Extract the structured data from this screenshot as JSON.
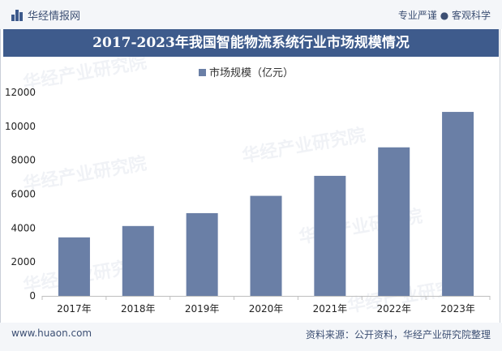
{
  "header": {
    "brand": "华经情报网",
    "slogan": "专业严谨 ● 客观科学"
  },
  "title": "2017-2023年我国智能物流系统行业市场规模情况",
  "footer": {
    "url": "www.huaon.com",
    "source": "资料来源：公开资料，华经产业研究院整理"
  },
  "watermark": "华经产业研究院",
  "colors": {
    "bar": "#6a7fa6",
    "title_bg": "#3e5b8c"
  },
  "chart_data": {
    "type": "bar",
    "categories": [
      "2017年",
      "2018年",
      "2019年",
      "2020年",
      "2021年",
      "2022年",
      "2023年"
    ],
    "series": [
      {
        "name": "市场规模（亿元）",
        "values": [
          3450,
          4120,
          4880,
          5900,
          7080,
          8760,
          10850
        ]
      }
    ],
    "ylim": [
      0,
      12000
    ],
    "yticks": [
      0,
      2000,
      4000,
      6000,
      8000,
      10000,
      12000
    ],
    "legend_position": "top-center",
    "grid": false
  }
}
